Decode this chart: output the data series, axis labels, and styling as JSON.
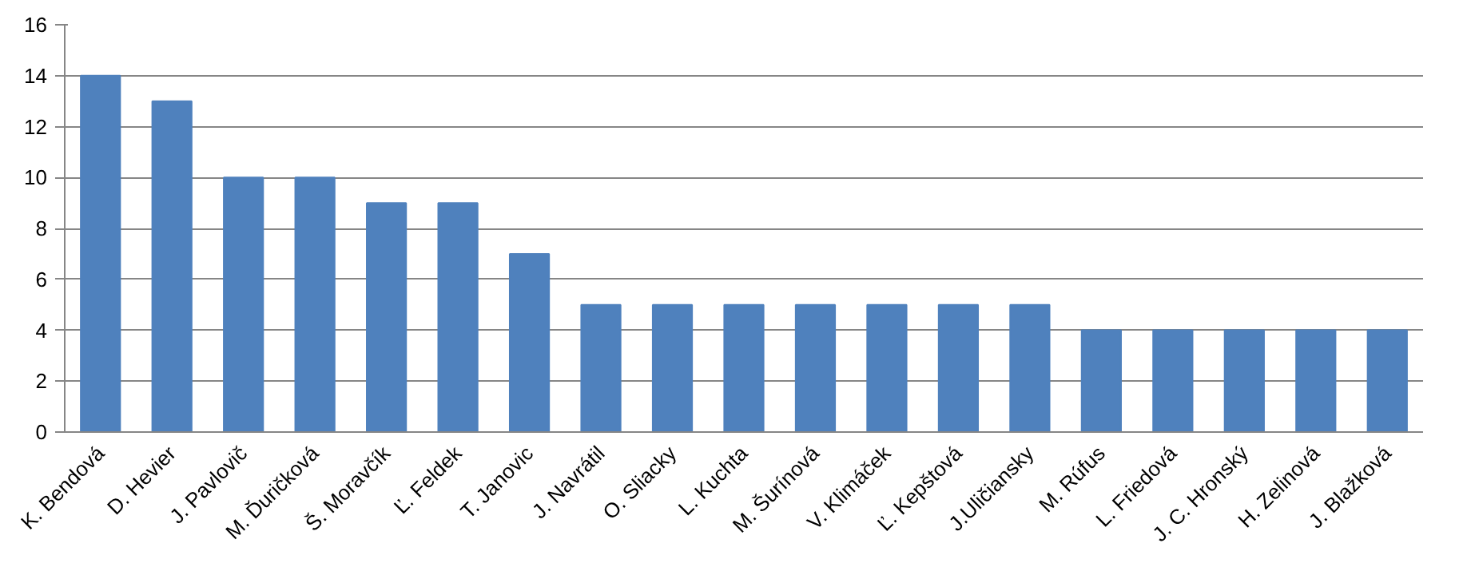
{
  "chart_data": {
    "type": "bar",
    "categories": [
      "K. Bendová",
      "D. Hevier",
      "J. Pavlovič",
      "M. Ďuričková",
      "Š. Moravčík",
      "Ľ. Feldek",
      "T. Janovic",
      "J. Navrátil",
      "O. Sliacky",
      "L. Kuchta",
      "M. Šurínová",
      "V. Klimáček",
      "Ľ. Kepštová",
      "J.Uličiansky",
      "M. Rúfus",
      "L. Friedová",
      "J. C. Hronský",
      "H. Zelinová",
      "J. Blažková"
    ],
    "values": [
      14,
      13,
      10,
      10,
      9,
      9,
      7,
      5,
      5,
      5,
      5,
      5,
      5,
      5,
      4,
      4,
      4,
      4,
      4
    ],
    "color": "#4f81bd",
    "ylim": [
      0,
      16
    ],
    "yticks": [
      0,
      2,
      4,
      6,
      8,
      10,
      12,
      14,
      16
    ],
    "grid": "y"
  }
}
